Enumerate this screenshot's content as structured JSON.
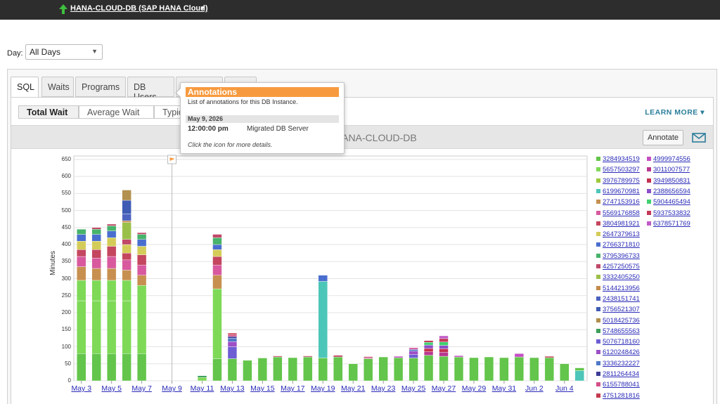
{
  "topbar": {
    "db_name": "HANA-CLOUD-DB (SAP HANA Cloud)"
  },
  "day_filter": {
    "label": "Day:",
    "value": "All Days"
  },
  "tabs": [
    {
      "label": "SQL",
      "active": true
    },
    {
      "label": "Waits"
    },
    {
      "label": "Programs"
    },
    {
      "label": "DB Users"
    },
    {
      "label": ""
    },
    {
      "label": ""
    }
  ],
  "subtabs": [
    {
      "label": "Total Wait",
      "active": true
    },
    {
      "label": "Average Wait"
    },
    {
      "label": "Typica"
    }
  ],
  "learn_more": "LEARN MORE",
  "chart_header": {
    "title": "HANA-CLOUD-DB",
    "annotate": "Annotate"
  },
  "popup": {
    "title": "Annotations",
    "desc": "List of annotations for this DB Instance.",
    "date": "May 9, 2026",
    "time": "12:00:00 pm",
    "event": "Migrated DB Server",
    "note": "Click the icon for more details."
  },
  "colors": {
    "topbar": "#2d2d2d",
    "accent": "#f79a3f",
    "link": "#2a2ab8",
    "learn_more": "#2a7d9a"
  },
  "chart_data": {
    "type": "bar",
    "stacked": true,
    "ylabel": "Minutes",
    "yticks": [
      0,
      50,
      100,
      150,
      200,
      250,
      300,
      350,
      400,
      450,
      500,
      550,
      600,
      650
    ],
    "ylim": [
      0,
      660
    ],
    "xtick_labels": [
      "May 3",
      "May 5",
      "May 7",
      "May 9",
      "May 11",
      "May 13",
      "May 15",
      "May 17",
      "May 19",
      "May 21",
      "May 23",
      "May 25",
      "May 27",
      "May 29",
      "May 31",
      "Jun 2",
      "Jun 4"
    ],
    "categories": [
      "May 3",
      "May 4",
      "May 5",
      "May 6",
      "May 7",
      "May 8",
      "May 9",
      "May 10",
      "May 11",
      "May 12",
      "May 13",
      "May 14",
      "May 15",
      "May 16",
      "May 17",
      "May 18",
      "May 19",
      "May 20",
      "May 21",
      "May 22",
      "May 23",
      "May 24",
      "May 25",
      "May 26",
      "May 27",
      "May 28",
      "May 29",
      "May 30",
      "May 31",
      "Jun 1",
      "Jun 2",
      "Jun 3",
      "Jun 4",
      "Jun 5"
    ],
    "annotation": {
      "x": "May 9"
    },
    "grid": true,
    "series_colors": [
      "#63c54b",
      "#7ed957",
      "#9cc93b",
      "#4cc6b8",
      "#c79050",
      "#d8599e",
      "#c4465f",
      "#d4cc58",
      "#4a6ecf",
      "#47b36b",
      "#c04868",
      "#9bc04a",
      "#c48a4a",
      "#4c63c0",
      "#3e5cb3",
      "#b2904e",
      "#3c9e5a",
      "#6d5ed4",
      "#9d4fc6",
      "#4f79c8",
      "#3c3c96",
      "#d44f89",
      "#c43c4f",
      "#c44fc4",
      "#b8388f",
      "#c4304f",
      "#8a4fc8",
      "#3fd070",
      "#c43858",
      "#c05ac8"
    ],
    "legend": [
      "3284934519",
      "5657503297",
      "3976789975",
      "6199670981",
      "2747153916",
      "5569176858",
      "3804981921",
      "2647379613",
      "2766371810",
      "3795396733",
      "4257250575",
      "3332405250",
      "5144213956",
      "2438151741",
      "3756521307",
      "5018425736",
      "5748655563",
      "5076718160",
      "6120248426",
      "3336232227",
      "2811264434",
      "6155788041",
      "4751281816",
      "4999974556",
      "3011007577",
      "3949850831",
      "2388656594",
      "5904465494",
      "5937533832",
      "6378571769"
    ],
    "bars": [
      {
        "x": "May 3",
        "segments": [
          [
            0,
            80
          ],
          [
            1,
            155
          ],
          [
            1,
            60
          ],
          [
            4,
            40
          ],
          [
            5,
            30
          ],
          [
            6,
            20
          ],
          [
            7,
            25
          ],
          [
            8,
            20
          ],
          [
            9,
            15
          ]
        ]
      },
      {
        "x": "May 4",
        "segments": [
          [
            0,
            80
          ],
          [
            1,
            155
          ],
          [
            1,
            60
          ],
          [
            4,
            35
          ],
          [
            5,
            30
          ],
          [
            6,
            25
          ],
          [
            7,
            25
          ],
          [
            8,
            20
          ],
          [
            9,
            15
          ],
          [
            10,
            5
          ]
        ]
      },
      {
        "x": "May 5",
        "segments": [
          [
            0,
            80
          ],
          [
            1,
            155
          ],
          [
            1,
            60
          ],
          [
            4,
            35
          ],
          [
            5,
            35
          ],
          [
            6,
            30
          ],
          [
            7,
            25
          ],
          [
            8,
            20
          ],
          [
            9,
            15
          ],
          [
            10,
            5
          ]
        ]
      },
      {
        "x": "May 6",
        "segments": [
          [
            0,
            80
          ],
          [
            1,
            155
          ],
          [
            1,
            60
          ],
          [
            4,
            30
          ],
          [
            5,
            30
          ],
          [
            6,
            20
          ],
          [
            7,
            25
          ],
          [
            10,
            15
          ],
          [
            11,
            50
          ],
          [
            12,
            5
          ],
          [
            13,
            20
          ],
          [
            14,
            40
          ],
          [
            15,
            30
          ]
        ]
      },
      {
        "x": "May 7",
        "segments": [
          [
            0,
            80
          ],
          [
            1,
            200
          ],
          [
            4,
            30
          ],
          [
            5,
            30
          ],
          [
            6,
            30
          ],
          [
            7,
            25
          ],
          [
            8,
            20
          ],
          [
            9,
            15
          ],
          [
            10,
            5
          ]
        ]
      },
      {
        "x": "May 8",
        "segments": []
      },
      {
        "x": "May 9",
        "segments": []
      },
      {
        "x": "May 10",
        "segments": []
      },
      {
        "x": "May 11",
        "segments": [
          [
            1,
            10
          ],
          [
            16,
            5
          ]
        ]
      },
      {
        "x": "May 12",
        "segments": [
          [
            0,
            65
          ],
          [
            1,
            205
          ],
          [
            4,
            40
          ],
          [
            5,
            30
          ],
          [
            6,
            25
          ],
          [
            7,
            20
          ],
          [
            8,
            15
          ],
          [
            9,
            20
          ],
          [
            10,
            10
          ]
        ]
      },
      {
        "x": "May 13",
        "segments": [
          [
            0,
            65
          ],
          [
            17,
            35
          ],
          [
            18,
            15
          ],
          [
            19,
            10
          ],
          [
            20,
            5
          ],
          [
            21,
            5
          ],
          [
            22,
            5
          ]
        ]
      },
      {
        "x": "May 14",
        "segments": [
          [
            0,
            60
          ]
        ]
      },
      {
        "x": "May 15",
        "segments": [
          [
            0,
            67
          ]
        ]
      },
      {
        "x": "May 16",
        "segments": [
          [
            0,
            70
          ],
          [
            10,
            3
          ]
        ]
      },
      {
        "x": "May 17",
        "segments": [
          [
            0,
            68
          ]
        ]
      },
      {
        "x": "May 18",
        "segments": [
          [
            0,
            70
          ],
          [
            10,
            3
          ]
        ]
      },
      {
        "x": "May 19",
        "segments": [
          [
            0,
            67
          ],
          [
            3,
            225
          ],
          [
            8,
            18
          ]
        ]
      },
      {
        "x": "May 20",
        "segments": [
          [
            0,
            70
          ],
          [
            10,
            5
          ]
        ]
      },
      {
        "x": "May 21",
        "segments": [
          [
            0,
            50
          ]
        ]
      },
      {
        "x": "May 22",
        "segments": [
          [
            0,
            65
          ],
          [
            5,
            3
          ],
          [
            10,
            3
          ]
        ]
      },
      {
        "x": "May 23",
        "segments": [
          [
            0,
            70
          ]
        ]
      },
      {
        "x": "May 24",
        "segments": [
          [
            0,
            68
          ],
          [
            23,
            4
          ]
        ]
      },
      {
        "x": "May 25",
        "segments": [
          [
            0,
            67
          ],
          [
            17,
            10
          ],
          [
            18,
            10
          ],
          [
            19,
            5
          ],
          [
            5,
            5
          ]
        ]
      },
      {
        "x": "May 26",
        "segments": [
          [
            0,
            75
          ],
          [
            24,
            10
          ],
          [
            25,
            10
          ],
          [
            26,
            10
          ],
          [
            27,
            8
          ],
          [
            28,
            5
          ]
        ]
      },
      {
        "x": "May 27",
        "segments": [
          [
            0,
            72
          ],
          [
            24,
            12
          ],
          [
            25,
            10
          ],
          [
            26,
            10
          ],
          [
            27,
            10
          ],
          [
            28,
            10
          ],
          [
            29,
            8
          ]
        ]
      },
      {
        "x": "May 28",
        "segments": [
          [
            0,
            70
          ],
          [
            23,
            4
          ]
        ]
      },
      {
        "x": "May 29",
        "segments": [
          [
            0,
            68
          ]
        ]
      },
      {
        "x": "May 30",
        "segments": [
          [
            0,
            70
          ]
        ]
      },
      {
        "x": "May 31",
        "segments": [
          [
            0,
            68
          ]
        ]
      },
      {
        "x": "Jun 1",
        "segments": [
          [
            0,
            70
          ],
          [
            23,
            10
          ]
        ]
      },
      {
        "x": "Jun 2",
        "segments": [
          [
            0,
            68
          ]
        ]
      },
      {
        "x": "Jun 3",
        "segments": [
          [
            0,
            68
          ],
          [
            6,
            4
          ]
        ]
      },
      {
        "x": "Jun 4",
        "segments": [
          [
            0,
            50
          ]
        ]
      },
      {
        "x": "Jun 5",
        "segments": [
          [
            3,
            30
          ],
          [
            0,
            8
          ]
        ]
      }
    ]
  }
}
